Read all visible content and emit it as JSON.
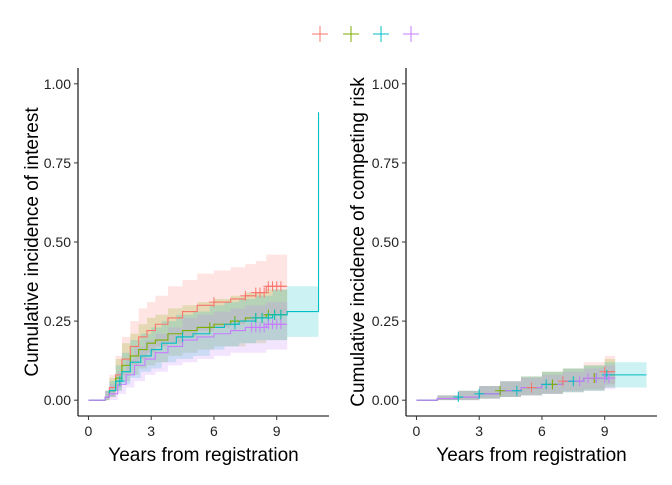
{
  "legend": {
    "position": "top-center",
    "items": [
      {
        "color": "#F8766D",
        "marker": "plus"
      },
      {
        "color": "#7CAE00",
        "marker": "plus"
      },
      {
        "color": "#00BFC4",
        "marker": "plus"
      },
      {
        "color": "#C77CFF",
        "marker": "plus"
      }
    ]
  },
  "chart_data": [
    {
      "type": "line",
      "step": true,
      "with_confidence_bands": true,
      "censor_marks": "plus",
      "xlabel": "Years from registration",
      "ylabel": "Cumulative incidence of interest",
      "xlim": [
        -0.5,
        11.5
      ],
      "ylim": [
        -0.05,
        1.05
      ],
      "xticks": [
        0,
        3,
        6,
        9
      ],
      "xtick_labels": [
        "0",
        "3",
        "6",
        "9"
      ],
      "yticks": [
        0,
        0.25,
        0.5,
        0.75,
        1
      ],
      "ytick_labels": [
        "0.00",
        "0.25",
        "0.50",
        "0.75",
        "1.00"
      ],
      "grid": false,
      "series": [
        {
          "color": "#F8766D",
          "x": [
            0,
            0.8,
            1.0,
            1.3,
            1.6,
            2.0,
            2.4,
            2.8,
            3.2,
            3.8,
            4.5,
            5.2,
            6.0,
            6.8,
            7.5,
            8.0,
            8.5,
            9.5
          ],
          "y": [
            0,
            0.01,
            0.04,
            0.08,
            0.13,
            0.17,
            0.2,
            0.22,
            0.24,
            0.26,
            0.28,
            0.3,
            0.31,
            0.32,
            0.33,
            0.34,
            0.36,
            0.36
          ],
          "lower": [
            0,
            0,
            0.01,
            0.04,
            0.08,
            0.11,
            0.13,
            0.15,
            0.17,
            0.18,
            0.2,
            0.22,
            0.23,
            0.24,
            0.25,
            0.26,
            0.27,
            0.27
          ],
          "upper": [
            0,
            0.03,
            0.08,
            0.14,
            0.2,
            0.25,
            0.29,
            0.31,
            0.33,
            0.36,
            0.38,
            0.4,
            0.41,
            0.42,
            0.43,
            0.44,
            0.46,
            0.46
          ],
          "censor_x": [
            6.0,
            7.5,
            8.0,
            8.2,
            8.4,
            8.6,
            8.8,
            9.0,
            9.2
          ]
        },
        {
          "color": "#7CAE00",
          "x": [
            0,
            0.8,
            1.0,
            1.3,
            1.6,
            2.0,
            2.4,
            2.8,
            3.2,
            3.8,
            4.5,
            5.2,
            6.0,
            6.8,
            7.5,
            8.5,
            9.5
          ],
          "y": [
            0,
            0.01,
            0.03,
            0.07,
            0.11,
            0.14,
            0.16,
            0.18,
            0.19,
            0.21,
            0.22,
            0.23,
            0.24,
            0.25,
            0.26,
            0.27,
            0.27
          ],
          "lower": [
            0,
            0,
            0.01,
            0.03,
            0.06,
            0.08,
            0.1,
            0.11,
            0.12,
            0.14,
            0.15,
            0.16,
            0.17,
            0.17,
            0.18,
            0.19,
            0.19
          ],
          "upper": [
            0,
            0.03,
            0.07,
            0.13,
            0.18,
            0.21,
            0.24,
            0.26,
            0.27,
            0.29,
            0.3,
            0.31,
            0.32,
            0.33,
            0.34,
            0.35,
            0.35
          ],
          "censor_x": [
            5.8,
            7.0,
            8.0,
            8.3,
            8.6,
            8.9,
            9.2
          ]
        },
        {
          "color": "#00BFC4",
          "x": [
            0,
            0.8,
            1.0,
            1.3,
            1.6,
            2.0,
            2.5,
            3.0,
            3.5,
            4.2,
            5.0,
            5.8,
            6.5,
            7.2,
            8.0,
            8.8,
            9.5,
            11.0
          ],
          "y": [
            0,
            0.01,
            0.03,
            0.06,
            0.09,
            0.12,
            0.14,
            0.16,
            0.18,
            0.2,
            0.21,
            0.23,
            0.24,
            0.25,
            0.26,
            0.27,
            0.28,
            0.91
          ],
          "lower": [
            0,
            0,
            0.01,
            0.03,
            0.05,
            0.07,
            0.09,
            0.1,
            0.12,
            0.13,
            0.14,
            0.16,
            0.17,
            0.18,
            0.19,
            0.19,
            0.2,
            0.2
          ],
          "upper": [
            0,
            0.03,
            0.06,
            0.11,
            0.15,
            0.19,
            0.21,
            0.23,
            0.25,
            0.27,
            0.28,
            0.3,
            0.31,
            0.32,
            0.33,
            0.35,
            0.36,
            0.36
          ],
          "censor_x": [
            1.5,
            4.5,
            7.0,
            8.0,
            8.3,
            8.6,
            8.9,
            9.2
          ]
        },
        {
          "color": "#C77CFF",
          "x": [
            0,
            0.8,
            1.0,
            1.4,
            1.8,
            2.2,
            2.7,
            3.2,
            3.8,
            4.5,
            5.2,
            6.0,
            6.8,
            7.5,
            8.5,
            9.5
          ],
          "y": [
            0,
            0.01,
            0.02,
            0.05,
            0.08,
            0.11,
            0.13,
            0.15,
            0.17,
            0.19,
            0.2,
            0.21,
            0.22,
            0.23,
            0.24,
            0.24
          ],
          "lower": [
            0,
            0,
            0,
            0.02,
            0.04,
            0.06,
            0.08,
            0.09,
            0.11,
            0.12,
            0.13,
            0.14,
            0.15,
            0.15,
            0.16,
            0.16
          ],
          "upper": [
            0,
            0.03,
            0.05,
            0.09,
            0.13,
            0.17,
            0.19,
            0.21,
            0.23,
            0.26,
            0.27,
            0.28,
            0.29,
            0.3,
            0.31,
            0.31
          ],
          "censor_x": [
            7.8,
            8.0,
            8.2,
            8.4,
            8.6,
            8.8,
            9.0,
            9.2
          ]
        }
      ]
    },
    {
      "type": "line",
      "step": true,
      "with_confidence_bands": true,
      "censor_marks": "plus",
      "xlabel": "Years from registration",
      "ylabel": "Cumulative incidence of competing risk",
      "xlim": [
        -0.5,
        11.5
      ],
      "ylim": [
        -0.05,
        1.05
      ],
      "xticks": [
        0,
        3,
        6,
        9
      ],
      "xtick_labels": [
        "0",
        "3",
        "6",
        "9"
      ],
      "yticks": [
        0,
        0.25,
        0.5,
        0.75,
        1
      ],
      "ytick_labels": [
        "0.00",
        "0.25",
        "0.50",
        "0.75",
        "1.00"
      ],
      "grid": false,
      "series": [
        {
          "color": "#F8766D",
          "x": [
            0,
            1.0,
            2.0,
            3.0,
            4.0,
            5.0,
            6.0,
            7.0,
            8.0,
            9.0,
            9.5
          ],
          "y": [
            0,
            0.005,
            0.01,
            0.02,
            0.03,
            0.04,
            0.05,
            0.06,
            0.07,
            0.09,
            0.09
          ],
          "lower": [
            0,
            0,
            0,
            0.005,
            0.01,
            0.015,
            0.02,
            0.03,
            0.035,
            0.05,
            0.05
          ],
          "upper": [
            0,
            0.015,
            0.03,
            0.045,
            0.06,
            0.075,
            0.09,
            0.1,
            0.12,
            0.14,
            0.14
          ],
          "censor_x": [
            5.5,
            7.0,
            8.5,
            9.0
          ]
        },
        {
          "color": "#7CAE00",
          "x": [
            0,
            1.0,
            2.0,
            3.0,
            4.0,
            5.0,
            6.0,
            7.0,
            8.0,
            9.0,
            9.5
          ],
          "y": [
            0,
            0.005,
            0.01,
            0.02,
            0.03,
            0.04,
            0.05,
            0.06,
            0.07,
            0.08,
            0.08
          ],
          "lower": [
            0,
            0,
            0,
            0.005,
            0.01,
            0.015,
            0.02,
            0.025,
            0.03,
            0.04,
            0.04
          ],
          "upper": [
            0,
            0.015,
            0.03,
            0.045,
            0.06,
            0.075,
            0.09,
            0.1,
            0.11,
            0.13,
            0.13
          ],
          "censor_x": [
            4.0,
            6.5,
            8.5
          ]
        },
        {
          "color": "#00BFC4",
          "x": [
            0,
            1.0,
            2.0,
            3.0,
            4.0,
            5.0,
            6.0,
            7.0,
            8.0,
            9.0,
            9.5,
            11.0
          ],
          "y": [
            0,
            0.005,
            0.01,
            0.02,
            0.03,
            0.04,
            0.05,
            0.06,
            0.07,
            0.08,
            0.08,
            0.08
          ],
          "lower": [
            0,
            0,
            0,
            0.005,
            0.01,
            0.015,
            0.02,
            0.025,
            0.03,
            0.04,
            0.04,
            0.04
          ],
          "upper": [
            0,
            0.015,
            0.03,
            0.045,
            0.06,
            0.075,
            0.09,
            0.1,
            0.11,
            0.12,
            0.12,
            0.12
          ],
          "censor_x": [
            2.0,
            3.0,
            4.8,
            6.2,
            7.5,
            8.6,
            9.1
          ]
        },
        {
          "color": "#C77CFF",
          "x": [
            0,
            1.0,
            2.0,
            3.0,
            4.0,
            5.0,
            6.0,
            7.0,
            8.0,
            9.0,
            9.5
          ],
          "y": [
            0,
            0.005,
            0.01,
            0.02,
            0.03,
            0.04,
            0.05,
            0.06,
            0.07,
            0.07,
            0.07
          ],
          "lower": [
            0,
            0,
            0,
            0.005,
            0.01,
            0.015,
            0.02,
            0.025,
            0.03,
            0.035,
            0.035
          ],
          "upper": [
            0,
            0.015,
            0.03,
            0.045,
            0.06,
            0.07,
            0.08,
            0.09,
            0.1,
            0.11,
            0.11
          ],
          "censor_x": [
            7.8,
            8.2,
            8.6,
            9.0,
            9.2
          ]
        }
      ]
    }
  ]
}
